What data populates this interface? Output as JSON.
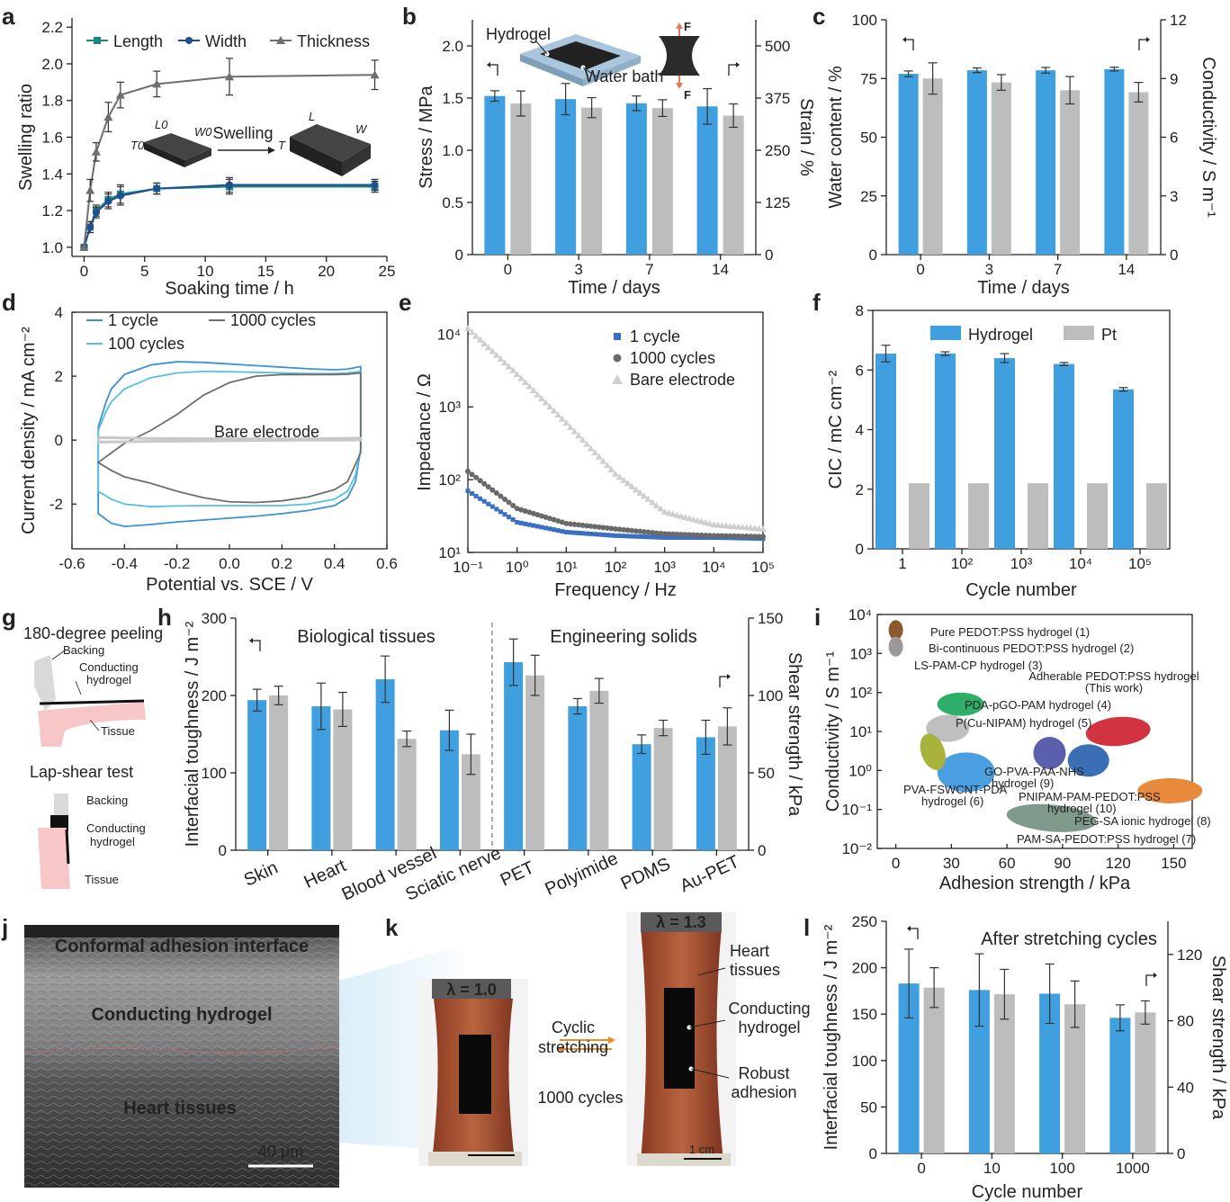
{
  "colors": {
    "blue": "#3f9fdf",
    "gray": "#bdbdbd",
    "navy": "#1f4f91",
    "teal": "#1a8a80",
    "darkgray": "#6e6e6e",
    "lightblue": "#49b4d9",
    "axis": "#222222"
  },
  "labels": {
    "a": "a",
    "b": "b",
    "c": "c",
    "d": "d",
    "e": "e",
    "f": "f",
    "g": "g",
    "h": "h",
    "i": "i",
    "j": "j",
    "k": "k",
    "l": "l"
  },
  "a": {
    "title": "",
    "xlabel": "Soaking time / h",
    "ylabel": "Swelling ratio",
    "legend": [
      "Length",
      "Width",
      "Thickness"
    ],
    "schematic": {
      "l0": "L0",
      "w0": "W0",
      "t0": "T0",
      "arrow": "Swelling",
      "l": "L",
      "w": "W",
      "t": "T"
    }
  },
  "b": {
    "xlabel": "Time / days",
    "ylabel": "Stress / MPa",
    "ylabel2": "Strain / %",
    "inset": {
      "hydrogel": "Hydrogel",
      "water": "Water bath",
      "force": "F"
    }
  },
  "c": {
    "xlabel": "Time / days",
    "ylabel": "Water content / %",
    "ylabel2": "Conductivity / S m⁻¹"
  },
  "d": {
    "xlabel": "Potential vs. SCE / V",
    "ylabel": "Current density / mA cm⁻²",
    "legend": [
      "1 cycle",
      "100 cycles",
      "1000 cycles"
    ],
    "annotation": "Bare electrode"
  },
  "e": {
    "xlabel": "Frequency / Hz",
    "ylabel": "Impedance / Ω",
    "legend": [
      "1 cycle",
      "1000 cycles",
      "Bare electrode"
    ]
  },
  "f": {
    "xlabel": "Cycle number",
    "ylabel": "CIC / mC cm⁻²",
    "legend": [
      "Hydrogel",
      "Pt"
    ]
  },
  "g": {
    "peel_title": "180-degree peeling",
    "backing": "Backing",
    "conducting": "Conducting",
    "hydrogel": "hydrogel",
    "tissue": "Tissue",
    "lap_title": "Lap-shear test"
  },
  "h": {
    "ylabel": "Interfacial toughness / J m⁻²",
    "ylabel2": "Shear strength / kPa",
    "group1": "Biological tissues",
    "group2": "Engineering solids"
  },
  "i": {
    "xlabel": "Adhesion strength / kPa",
    "ylabel": "Conductivity / S m⁻¹",
    "points": [
      {
        "name": "Pure PEDOT:PSS hydrogel (1)",
        "color": "#8b5a2b"
      },
      {
        "name": "Bi-continuous PEDOT:PSS hydrogel (2)",
        "color": "#999999"
      },
      {
        "name": "LS-PAM-CP hydrogel (3)",
        "color": "#2fae6a"
      },
      {
        "name": "PDA-pGO-PAM hydrogel (4)",
        "color": "#bfbfbf"
      },
      {
        "name": "P(Cu-NIPAM) hydrogel (5)",
        "color": "#4a9fe0"
      },
      {
        "name": "PVA-FSWCNT-PDA",
        "name2": "hydrogel (6)",
        "color": "#a9b23a"
      },
      {
        "name": "PAM-SA-PEDOT:PSS hydrogel (7)",
        "color": "#7f9a8a"
      },
      {
        "name": "PEG-SA ionic hydrogel (8)",
        "color": "#e88a3c"
      },
      {
        "name": "GO-PVA-PAA-NHS",
        "name2": "hydrogel (9)",
        "color": "#5a5fae"
      },
      {
        "name": "PNIPAM-PAM-PEDOT:PSS",
        "name2": "hydrogel (10)",
        "color": "#3a6fb6"
      },
      {
        "name": "Adherable PEDOT:PSS hydrogel",
        "name2": "(This work)",
        "color": "#d13440"
      }
    ]
  },
  "j": {
    "top": "Conformal adhesion interface",
    "mid": "Conducting hydrogel",
    "bottom": "Heart tissues",
    "scale": "40 μm"
  },
  "k": {
    "lambda1": "λ = 1.0",
    "lambda2": "λ = 1.3",
    "arrow_top1": "Cyclic",
    "arrow_top2": "stretching",
    "arrow_bottom": "1000 cycles",
    "heart": "Heart",
    "tissues": "tissues",
    "conducting": "Conducting",
    "hydrogel": "hydrogel",
    "robust": "Robust",
    "adhesion": "adhesion",
    "scale": "1 cm"
  },
  "l": {
    "xlabel": "Cycle number",
    "ylabel": "Interfacial toughness / J m⁻²",
    "ylabel2": "Shear strength / kPa",
    "annotation": "After stretching cycles"
  },
  "chart_data": [
    {
      "panel": "a",
      "type": "line",
      "xlim": [
        -1,
        25
      ],
      "ylim": [
        0.95,
        2.25
      ],
      "xticks": [
        0,
        5,
        10,
        15,
        20,
        25
      ],
      "yticks": [
        1.0,
        1.2,
        1.4,
        1.6,
        1.8,
        2.0,
        2.2
      ],
      "series": [
        {
          "name": "Length",
          "x": [
            0,
            0.5,
            1,
            2,
            3,
            6,
            12,
            24
          ],
          "y": [
            1.0,
            1.11,
            1.2,
            1.26,
            1.29,
            1.32,
            1.33,
            1.33
          ],
          "err": [
            0,
            0.03,
            0.03,
            0.04,
            0.05,
            0.03,
            0.04,
            0.03
          ]
        },
        {
          "name": "Width",
          "x": [
            0,
            0.5,
            1,
            2,
            3,
            6,
            12,
            24
          ],
          "y": [
            1.0,
            1.11,
            1.19,
            1.25,
            1.28,
            1.32,
            1.34,
            1.34
          ],
          "err": [
            0,
            0.03,
            0.03,
            0.04,
            0.05,
            0.03,
            0.04,
            0.03
          ]
        },
        {
          "name": "Thickness",
          "x": [
            0,
            0.5,
            1,
            2,
            3,
            6,
            12,
            24
          ],
          "y": [
            1.0,
            1.31,
            1.52,
            1.71,
            1.83,
            1.89,
            1.93,
            1.94
          ],
          "err": [
            0,
            0.06,
            0.05,
            0.08,
            0.07,
            0.07,
            0.1,
            0.08
          ]
        }
      ]
    },
    {
      "panel": "b",
      "type": "bar",
      "categories": [
        "0",
        "3",
        "7",
        "14"
      ],
      "ylim": [
        0,
        2.25
      ],
      "y2lim": [
        0,
        562.5
      ],
      "yticks": [
        0,
        0.5,
        1.0,
        1.5,
        2.0
      ],
      "y2ticks": [
        0,
        125,
        250,
        375,
        500
      ],
      "series": [
        {
          "name": "Stress",
          "values": [
            1.52,
            1.49,
            1.45,
            1.42
          ],
          "err": [
            0.05,
            0.15,
            0.07,
            0.17
          ]
        },
        {
          "name": "Strain",
          "values": [
            362,
            352,
            351,
            333
          ],
          "err": [
            30,
            24,
            20,
            28
          ]
        }
      ]
    },
    {
      "panel": "c",
      "type": "bar",
      "categories": [
        "0",
        "3",
        "7",
        "14"
      ],
      "ylim": [
        0,
        100
      ],
      "y2lim": [
        0,
        12
      ],
      "yticks": [
        0,
        25,
        50,
        75,
        100
      ],
      "y2ticks": [
        0,
        3,
        6,
        9,
        12
      ],
      "series": [
        {
          "name": "Water content",
          "values": [
            77,
            78.5,
            78.5,
            79
          ],
          "err": [
            1.2,
            1,
            1.2,
            0.8
          ]
        },
        {
          "name": "Conductivity",
          "values": [
            9.0,
            8.8,
            8.4,
            8.3
          ],
          "err": [
            0.8,
            0.4,
            0.7,
            0.5
          ]
        }
      ]
    },
    {
      "panel": "d",
      "type": "line",
      "xlim": [
        -0.6,
        0.6
      ],
      "ylim": [
        -3.4,
        4
      ],
      "xticks": [
        -0.6,
        -0.4,
        -0.2,
        0.0,
        0.2,
        0.4,
        0.6
      ],
      "yticks": [
        -2,
        0,
        2,
        4
      ],
      "series": [
        {
          "name": "1 cycle",
          "x": [
            -0.5,
            -0.47,
            -0.45,
            -0.4,
            -0.3,
            -0.2,
            -0.1,
            0,
            0.1,
            0.2,
            0.3,
            0.4,
            0.45,
            0.5,
            0.5,
            0.48,
            0.45,
            0.4,
            0.3,
            0.2,
            0.1,
            0,
            -0.1,
            -0.2,
            -0.3,
            -0.4,
            -0.45,
            -0.5
          ],
          "y": [
            0.4,
            1.2,
            1.6,
            2.05,
            2.35,
            2.45,
            2.43,
            2.38,
            2.33,
            2.28,
            2.23,
            2.2,
            2.22,
            2.3,
            -0.3,
            -1.3,
            -1.8,
            -2.05,
            -2.2,
            -2.3,
            -2.38,
            -2.44,
            -2.5,
            -2.56,
            -2.64,
            -2.7,
            -2.6,
            -2.3
          ]
        },
        {
          "name": "100 cycles",
          "x": [
            -0.5,
            -0.47,
            -0.45,
            -0.4,
            -0.3,
            -0.2,
            -0.1,
            0,
            0.1,
            0.2,
            0.3,
            0.4,
            0.45,
            0.5,
            0.5,
            0.48,
            0.45,
            0.4,
            0.3,
            0.2,
            0.1,
            0,
            -0.1,
            -0.2,
            -0.3,
            -0.4,
            -0.45,
            -0.5
          ],
          "y": [
            0.3,
            0.9,
            1.2,
            1.6,
            1.95,
            2.1,
            2.15,
            2.14,
            2.12,
            2.1,
            2.08,
            2.08,
            2.1,
            2.15,
            -0.3,
            -1.1,
            -1.6,
            -1.85,
            -2.0,
            -2.05,
            -2.05,
            -2.05,
            -2.05,
            -2.06,
            -2.08,
            -2.0,
            -1.85,
            -1.6
          ]
        },
        {
          "name": "1000 cycles",
          "x": [
            -0.5,
            -0.45,
            -0.4,
            -0.3,
            -0.2,
            -0.1,
            0,
            0.1,
            0.2,
            0.3,
            0.4,
            0.45,
            0.5,
            0.5,
            0.45,
            0.4,
            0.3,
            0.2,
            0.1,
            0,
            -0.1,
            -0.2,
            -0.3,
            -0.4,
            -0.45,
            -0.5
          ],
          "y": [
            -0.7,
            -0.4,
            -0.1,
            0.3,
            0.8,
            1.4,
            1.8,
            2.0,
            2.05,
            2.05,
            2.05,
            2.06,
            2.1,
            -0.4,
            -1.3,
            -1.55,
            -1.78,
            -1.9,
            -1.95,
            -1.93,
            -1.8,
            -1.6,
            -1.35,
            -1.15,
            -0.95,
            -0.7
          ]
        },
        {
          "name": "Bare electrode",
          "x": [
            -0.5,
            -0.3,
            0,
            0.3,
            0.5,
            0.5,
            0.3,
            0,
            -0.3,
            -0.5
          ],
          "y": [
            0.08,
            0.05,
            0.04,
            0.04,
            0.06,
            0.0,
            0.0,
            -0.02,
            -0.04,
            -0.06
          ]
        }
      ]
    },
    {
      "panel": "e",
      "type": "scatter",
      "xscale": "log",
      "yscale": "log",
      "xlim": [
        0.1,
        100000
      ],
      "ylim": [
        10,
        20000
      ],
      "xticks": [
        "10⁻¹",
        "10⁰",
        "10¹",
        "10²",
        "10³",
        "10⁴",
        "10⁵"
      ],
      "yticks": [
        "10¹",
        "10²",
        "10³",
        "10⁴"
      ],
      "series": [
        {
          "name": "1 cycle",
          "x": [
            0.1,
            1,
            10,
            100,
            1000,
            10000,
            100000
          ],
          "y": [
            70,
            26,
            19,
            17,
            16,
            16,
            15.5
          ]
        },
        {
          "name": "1000 cycles",
          "x": [
            0.1,
            1,
            10,
            100,
            1000,
            10000,
            100000
          ],
          "y": [
            130,
            40,
            25,
            21,
            18,
            17,
            16.5
          ]
        },
        {
          "name": "Bare electrode",
          "x": [
            0.1,
            1,
            10,
            100,
            1000,
            10000,
            100000
          ],
          "y": [
            12000,
            2800,
            600,
            120,
            36,
            24,
            21
          ]
        }
      ]
    },
    {
      "panel": "f",
      "type": "bar",
      "categories": [
        "1",
        "10²",
        "10³",
        "10⁴",
        "10⁵"
      ],
      "ylim": [
        0,
        8
      ],
      "yticks": [
        0,
        2,
        4,
        6,
        8
      ],
      "series": [
        {
          "name": "Hydrogel",
          "values": [
            6.55,
            6.55,
            6.4,
            6.2,
            5.35
          ],
          "err": [
            0.28,
            0.06,
            0.15,
            0.05,
            0.06
          ]
        },
        {
          "name": "Pt",
          "values": [
            2.2,
            2.2,
            2.2,
            2.2,
            2.2
          ],
          "err": [
            0,
            0,
            0,
            0,
            0
          ]
        }
      ]
    },
    {
      "panel": "h",
      "type": "bar",
      "categories": [
        "Skin",
        "Heart",
        "Blood vessel",
        "Sciatic nerve",
        "PET",
        "Polyimide",
        "PDMS",
        "Au-PET"
      ],
      "ylim": [
        0,
        300
      ],
      "y2lim": [
        0,
        150
      ],
      "yticks": [
        0,
        100,
        200,
        300
      ],
      "y2ticks": [
        0,
        50,
        100,
        150
      ],
      "series": [
        {
          "name": "Interfacial toughness",
          "values": [
            194,
            186,
            221,
            155,
            243,
            186,
            137,
            146
          ],
          "err": [
            14,
            30,
            30,
            26,
            30,
            10,
            12,
            22
          ]
        },
        {
          "name": "Shear strength",
          "values": [
            100,
            91,
            72,
            62,
            113,
            103,
            79,
            80
          ],
          "err": [
            6,
            11,
            5,
            13,
            13,
            8,
            5,
            12
          ]
        }
      ]
    },
    {
      "panel": "i",
      "type": "scatter",
      "yscale": "log",
      "xlim": [
        -10,
        160
      ],
      "ylim": [
        0.01,
        10000
      ],
      "xticks": [
        0,
        30,
        60,
        90,
        120,
        150
      ],
      "yticks": [
        "10⁻²",
        "10⁻¹",
        "10⁰",
        "10¹",
        "10²",
        "10³",
        "10⁴"
      ],
      "series": [
        {
          "name": "Pure PEDOT:PSS hydrogel (1)",
          "x": 0,
          "y": 4000
        },
        {
          "name": "Bi-continuous PEDOT:PSS hydrogel (2)",
          "x": 0,
          "y": 1500
        },
        {
          "name": "LS-PAM-CP hydrogel (3)",
          "x": 35,
          "y": 50
        },
        {
          "name": "PDA-pGO-PAM hydrogel (4)",
          "x": 28,
          "y": 12
        },
        {
          "name": "P(Cu-NIPAM) hydrogel (5)",
          "x": 38,
          "y": 0.9
        },
        {
          "name": "PVA-FSWCNT-PDA hydrogel (6)",
          "x": 20,
          "y": 3
        },
        {
          "name": "PAM-SA-PEDOT:PSS hydrogel (7)",
          "x": 84,
          "y": 0.06
        },
        {
          "name": "PEG-SA ionic hydrogel (8)",
          "x": 148,
          "y": 0.3
        },
        {
          "name": "GO-PVA-PAA-NHS hydrogel (9)",
          "x": 83,
          "y": 2.8
        },
        {
          "name": "PNIPAM-PAM-PEDOT:PSS hydrogel (10)",
          "x": 104,
          "y": 1.8
        },
        {
          "name": "Adherable PEDOT:PSS hydrogel (This work)",
          "x": 120,
          "y": 10
        }
      ]
    },
    {
      "panel": "l",
      "type": "bar",
      "categories": [
        "0",
        "10",
        "100",
        "1000"
      ],
      "ylim": [
        0,
        250
      ],
      "y2lim": [
        0,
        140
      ],
      "yticks": [
        0,
        50,
        100,
        150,
        200,
        250
      ],
      "y2ticks": [
        0,
        40,
        80,
        120
      ],
      "series": [
        {
          "name": "Interfacial toughness",
          "values": [
            183,
            176,
            172,
            146
          ],
          "err": [
            37,
            39,
            32,
            14
          ]
        },
        {
          "name": "Shear strength",
          "values": [
            100,
            96,
            90,
            85
          ],
          "err": [
            12,
            15,
            14,
            7
          ]
        }
      ]
    }
  ]
}
